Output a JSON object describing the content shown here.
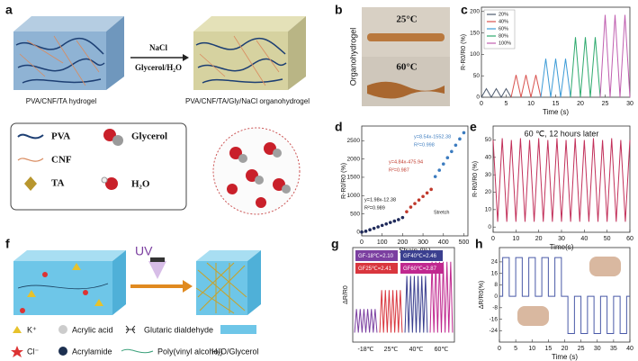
{
  "panel_labels": [
    "a",
    "b",
    "c",
    "d",
    "e",
    "f",
    "g",
    "h"
  ],
  "panel_a": {
    "hydrogel": "PVA/CNF/TA hydrogel",
    "arrow_top": "NaCl",
    "arrow_bottom": "Glycerol/H₂O",
    "organohydrogel": "PVA/CNF/TA/Gly/NaCl organohydrogel",
    "legend": [
      "PVA",
      "CNF",
      "TA",
      "Glycerol",
      "H₂O"
    ]
  },
  "panel_b": {
    "side_label": "Organohydrogel",
    "temp_top": "25°C",
    "temp_bottom": "60°C"
  },
  "panel_f": {
    "uv": "UV",
    "legend": [
      "K⁺",
      "Acrylic acid",
      "Glutaric dialdehyde",
      "Cl⁻",
      "Acrylamide",
      "Poly(vinyl alcohol)",
      "H₂O/Glycerol"
    ]
  },
  "chart_data": [
    {
      "type": "line",
      "xlabel": "Time (s)",
      "ylabel": "R-R0/R0 (%)",
      "xlim": [
        0,
        30
      ],
      "xticks": [
        0,
        5,
        10,
        15,
        20,
        25,
        30
      ],
      "ylim": [
        0,
        210
      ],
      "yticks": [
        0,
        50,
        100,
        150,
        200
      ],
      "legend": "upper left",
      "series": [
        {
          "name": "20%",
          "color": "#4d5a6e",
          "x": [
            0,
            1,
            2,
            3,
            4,
            5,
            6
          ],
          "values": [
            0,
            20,
            0,
            20,
            0,
            20,
            0
          ]
        },
        {
          "name": "40%",
          "color": "#d9534f",
          "x": [
            6,
            7,
            8,
            9,
            10,
            11,
            12
          ],
          "values": [
            0,
            52,
            0,
            52,
            0,
            52,
            0
          ]
        },
        {
          "name": "60%",
          "color": "#3c9bd6",
          "x": [
            12,
            13,
            14,
            15,
            16,
            17,
            18
          ],
          "values": [
            0,
            90,
            0,
            90,
            0,
            90,
            0
          ]
        },
        {
          "name": "80%",
          "color": "#2eaa6e",
          "x": [
            18,
            19,
            20,
            21,
            22,
            23,
            24
          ],
          "values": [
            0,
            140,
            0,
            140,
            0,
            140,
            0
          ]
        },
        {
          "name": "100%",
          "color": "#c05fb0",
          "x": [
            24,
            25,
            26,
            27,
            28,
            29,
            30
          ],
          "values": [
            0,
            192,
            0,
            192,
            0,
            192,
            0
          ]
        }
      ]
    },
    {
      "type": "scatter",
      "xlabel": "Strain (%)",
      "ylabel": "R-R0/R0 (%)",
      "xlim": [
        0,
        520
      ],
      "xticks": [
        0,
        100,
        200,
        300,
        400,
        500
      ],
      "ylim": [
        -100,
        2900
      ],
      "yticks": [
        0,
        500,
        1000,
        1500,
        2000,
        2500
      ],
      "annotations": [
        "y=8.54x-1552.38",
        "R²=0.998",
        "y=4.84x-475.94",
        "R²=0.987",
        "y=1.98x-12.38",
        "R²=0.989",
        "Stretch"
      ],
      "series": [
        {
          "color": "#1f2a5a",
          "x": [
            0,
            20,
            40,
            60,
            80,
            100,
            120,
            140,
            160,
            180,
            200
          ],
          "values": [
            5,
            27,
            67,
            106,
            146,
            186,
            225,
            265,
            304,
            344,
            400
          ]
        },
        {
          "color": "#c0392b",
          "x": [
            220,
            240,
            260,
            280,
            300,
            320,
            340
          ],
          "values": [
            560,
            686,
            782,
            879,
            976,
            1073,
            1170
          ]
        },
        {
          "color": "#3b7bbf",
          "x": [
            360,
            380,
            400,
            420,
            440,
            460,
            480,
            500
          ],
          "values": [
            1520,
            1693,
            1864,
            2034,
            2205,
            2376,
            2547,
            2718
          ]
        }
      ]
    },
    {
      "type": "line",
      "title": "60 ℃, 12 hours later",
      "xlabel": "Time(s)",
      "ylabel": "R-R0/R0 (%)",
      "xlim": [
        0,
        60
      ],
      "xticks": [
        0,
        10,
        20,
        30,
        40,
        50,
        60
      ],
      "ylim": [
        -3,
        58
      ],
      "yticks": [
        0,
        10,
        20,
        30,
        40,
        50
      ],
      "series": [
        {
          "color": "#c2305a",
          "x": [
            0,
            2,
            4,
            6,
            8,
            10,
            12,
            14,
            16,
            18,
            20,
            22,
            24,
            26,
            28,
            30,
            32,
            34,
            36,
            38,
            40,
            42,
            44,
            46,
            48,
            50,
            52,
            54,
            56,
            58,
            60
          ],
          "values": [
            50,
            3,
            51,
            3,
            50,
            3,
            51,
            3,
            50,
            3,
            51,
            3,
            50,
            3,
            51,
            3,
            50,
            3,
            51,
            3,
            50,
            3,
            51,
            3,
            50,
            3,
            51,
            3,
            50,
            3,
            50
          ]
        }
      ]
    },
    {
      "type": "line",
      "ylabel": "ΔR/R0",
      "xlim": [
        -2,
        107
      ],
      "ylim": [
        0,
        100
      ],
      "legend": "boxes",
      "categories": [
        "-18℃",
        "25℃",
        "40℃",
        "60℃"
      ],
      "series": [
        {
          "name": "GF-18℃=2.10",
          "color": "#7b3fa0",
          "x": [
            0,
            2,
            4,
            6,
            8,
            10,
            12,
            14,
            16,
            18,
            20,
            22,
            24
          ],
          "values": [
            10,
            35,
            10,
            35,
            10,
            35,
            10,
            35,
            10,
            35,
            10,
            35,
            10
          ]
        },
        {
          "name": "GF25℃=2.41",
          "color": "#d9363e",
          "x": [
            27,
            29,
            31,
            33,
            35,
            37,
            39,
            41,
            43,
            45,
            47,
            49,
            51
          ],
          "values": [
            10,
            55,
            10,
            55,
            10,
            55,
            10,
            55,
            10,
            55,
            10,
            55,
            10
          ]
        },
        {
          "name": "GF40℃=2.46",
          "color": "#3a3f8f",
          "x": [
            54,
            56,
            58,
            60,
            62,
            64,
            66,
            68,
            70,
            72,
            74,
            76,
            78
          ],
          "values": [
            10,
            70,
            10,
            70,
            10,
            70,
            10,
            70,
            10,
            70,
            10,
            70,
            10
          ]
        },
        {
          "name": "GF60℃=2.87",
          "color": "#c0288f",
          "x": [
            81,
            83,
            85,
            87,
            89,
            91,
            93,
            95,
            97,
            99,
            101,
            103,
            105
          ],
          "values": [
            10,
            85,
            10,
            85,
            10,
            85,
            10,
            85,
            10,
            85,
            10,
            85,
            10
          ]
        }
      ]
    },
    {
      "type": "line",
      "xlabel": "Time (s)",
      "ylabel": "ΔR/R0(%)",
      "xlim": [
        0,
        40
      ],
      "xticks": [
        0,
        5,
        10,
        15,
        20,
        25,
        30,
        35,
        40
      ],
      "ylim": [
        -32,
        34
      ],
      "yticks": [
        -24,
        -16,
        -8,
        0,
        8,
        16,
        24
      ],
      "series": [
        {
          "color": "#4a5aa8",
          "x": [
            0,
            1,
            1,
            3,
            3,
            5,
            5,
            7,
            7,
            9,
            9,
            11,
            11,
            13,
            13,
            15,
            15,
            17,
            17,
            19,
            19,
            21,
            21,
            23,
            23,
            25,
            25,
            27,
            27,
            29,
            29,
            31,
            31,
            33,
            33,
            35,
            35,
            37,
            37,
            39,
            39,
            40
          ],
          "values": [
            0,
            0,
            27,
            27,
            0,
            0,
            27,
            27,
            0,
            0,
            27,
            27,
            0,
            0,
            27,
            27,
            0,
            0,
            27,
            27,
            0,
            0,
            -26,
            -26,
            0,
            0,
            -26,
            -26,
            0,
            0,
            -26,
            -26,
            0,
            0,
            -26,
            -26,
            0,
            0,
            -26,
            -26,
            0,
            0
          ]
        }
      ]
    }
  ]
}
